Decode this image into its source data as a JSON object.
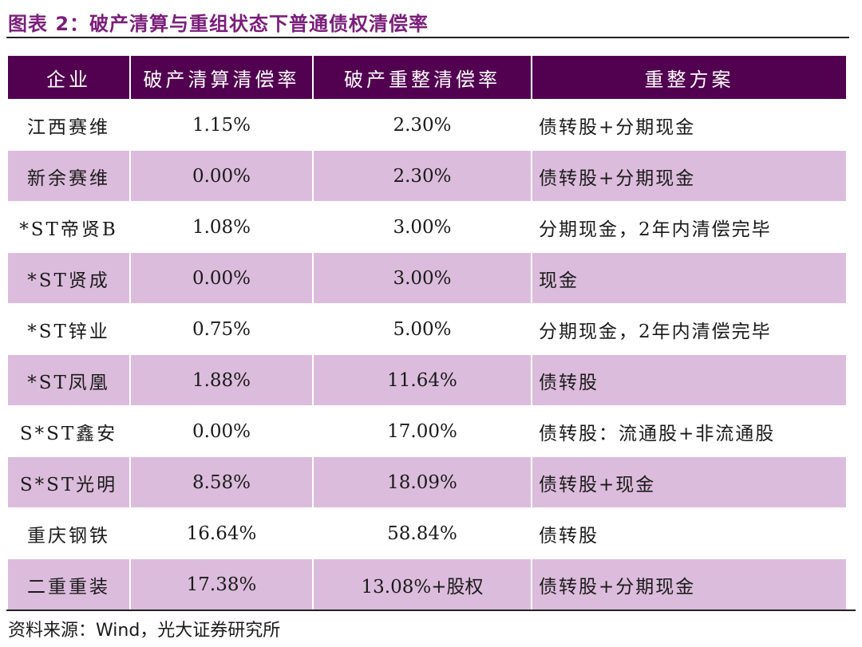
{
  "title": "图表 2：破产清算与重组状态下普通债权清偿率",
  "table": {
    "headers": [
      "企业",
      "破产清算清偿率",
      "破产重整清偿率",
      "重整方案"
    ],
    "rows": [
      [
        "江西赛维",
        "1.15%",
        "2.30%",
        "债转股+分期现金"
      ],
      [
        "新余赛维",
        "0.00%",
        "2.30%",
        "债转股+分期现金"
      ],
      [
        "*ST帝贤B",
        "1.08%",
        "3.00%",
        "分期现金，2年内清偿完毕"
      ],
      [
        "*ST贤成",
        "0.00%",
        "3.00%",
        "现金"
      ],
      [
        "*ST锌业",
        "0.75%",
        "5.00%",
        "分期现金，2年内清偿完毕"
      ],
      [
        "*ST凤凰",
        "1.88%",
        "11.64%",
        "债转股"
      ],
      [
        "S*ST鑫安",
        "0.00%",
        "17.00%",
        "债转股：流通股+非流通股"
      ],
      [
        "S*ST光明",
        "8.58%",
        "18.09%",
        "债转股+现金"
      ],
      [
        "重庆钢铁",
        "16.64%",
        "58.84%",
        "债转股"
      ],
      [
        "二重重装",
        "17.38%",
        "13.08%+股权",
        "债转股+分期现金"
      ]
    ]
  },
  "source": "资料来源：Wind，光大证券研究所",
  "colors": {
    "header_bg": "#520050",
    "alt_row_bg": "#dcbcdc",
    "title": "#7a1e7a"
  }
}
